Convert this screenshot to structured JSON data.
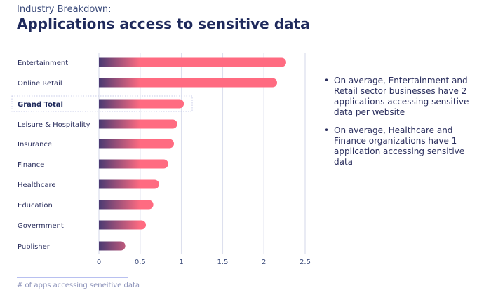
{
  "header": {
    "subtitle": "Industry Breakdown:",
    "title": "Applications access to sensitive data"
  },
  "chart_data": {
    "type": "bar",
    "orientation": "horizontal",
    "categories": [
      "Entertainment",
      "Online Retail",
      "Grand Total",
      "Leisure & Hospitality",
      "Insurance",
      "Finance",
      "Healthcare",
      "Education",
      "Govermment",
      "Publisher"
    ],
    "values": [
      2.27,
      2.16,
      1.03,
      0.95,
      0.91,
      0.84,
      0.73,
      0.66,
      0.57,
      0.32
    ],
    "highlighted": "Grand Total",
    "xlabel": "# of apps accessing seneitive data",
    "xlim": [
      0,
      2.5
    ],
    "xticks": [
      "0",
      "0.5",
      "1",
      "1.5",
      "2",
      "2.5"
    ],
    "grid": true,
    "colors": {
      "bar_start": "#4a3a72",
      "bar_end": "#ff6b81",
      "grid": "#dde0ee"
    }
  },
  "notes": [
    "On average, Entertainment and Retail sector businesses have 2 applications accessing sensitive data per website",
    "On average, Healthcare and Finance organizations have 1 application accessing sensitive data"
  ]
}
